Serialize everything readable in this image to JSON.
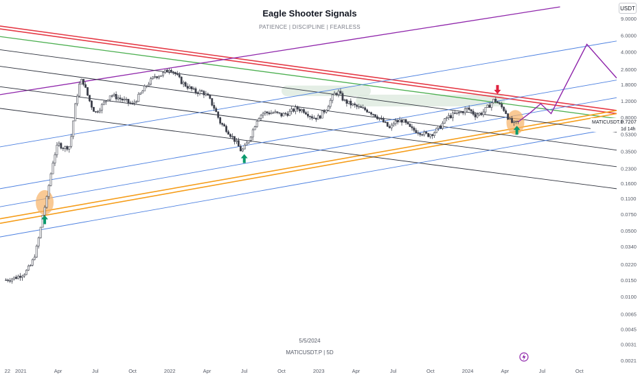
{
  "header": {
    "title": "Eagle Shooter Signals",
    "subtitle": "PATIENCE  |  DISCIPLINE  |  FEARLESS"
  },
  "currency_label": "USDT",
  "footer": {
    "date": "5/5/2024",
    "symbol_interval": "MATICUSDT.P | 5D"
  },
  "price_label": {
    "symbol": "MATICUSDT.P",
    "price": "0.7207",
    "countdown": "1d 14h"
  },
  "colors": {
    "red": "#e53945",
    "green": "#4caf50",
    "orange": "#f59d1a",
    "purple": "#8e24aa",
    "blue": "#4a7fe0",
    "black": "#2a2e39",
    "arrow_up": "#0b9a6d",
    "arrow_down": "#e0223f",
    "highlight": "#f7b267",
    "zone": "#dbe8dc",
    "candle": "#3c3f4a"
  },
  "chart_data": {
    "type": "candlestick",
    "title": "Eagle Shooter Signals",
    "subtitle": "PATIENCE  |  DISCIPLINE  |  FEARLESS",
    "symbol": "MATICUSDT.P",
    "interval": "5D",
    "y_scale": "log",
    "ylim": [
      0.0018,
      12
    ],
    "xlim": [
      2020.86,
      2025.0
    ],
    "y_ticks": [
      "9.0000",
      "6.0000",
      "4.0000",
      "2.6000",
      "1.8000",
      "1.2000",
      "0.8000",
      "0.5300",
      "0.3500",
      "0.2300",
      "0.1600",
      "0.1100",
      "0.0750",
      "0.0500",
      "0.0340",
      "0.0220",
      "0.0150",
      "0.0100",
      "0.0065",
      "0.0045",
      "0.0031",
      "0.0021"
    ],
    "x_ticks": [
      {
        "label": "22",
        "t": 2020.91
      },
      {
        "label": "2021",
        "t": 2021.0
      },
      {
        "label": "Apr",
        "t": 2021.25
      },
      {
        "label": "Jul",
        "t": 2021.5
      },
      {
        "label": "Oct",
        "t": 2021.75
      },
      {
        "label": "2022",
        "t": 2022.0
      },
      {
        "label": "Apr",
        "t": 2022.25
      },
      {
        "label": "Jul",
        "t": 2022.5
      },
      {
        "label": "Oct",
        "t": 2022.75
      },
      {
        "label": "2023",
        "t": 2023.0
      },
      {
        "label": "Apr",
        "t": 2023.25
      },
      {
        "label": "Jul",
        "t": 2023.5
      },
      {
        "label": "Oct",
        "t": 2023.75
      },
      {
        "label": "2024",
        "t": 2024.0
      },
      {
        "label": "Apr",
        "t": 2024.25
      },
      {
        "label": "Jul",
        "t": 2024.5
      },
      {
        "label": "Oct",
        "t": 2024.75
      }
    ],
    "last_price": 0.7207,
    "price_path": [
      [
        2020.9,
        0.015
      ],
      [
        2020.97,
        0.016
      ],
      [
        2021.03,
        0.018
      ],
      [
        2021.07,
        0.022
      ],
      [
        2021.1,
        0.03
      ],
      [
        2021.13,
        0.05
      ],
      [
        2021.15,
        0.08
      ],
      [
        2021.17,
        0.1
      ],
      [
        2021.19,
        0.16
      ],
      [
        2021.22,
        0.3
      ],
      [
        2021.25,
        0.42
      ],
      [
        2021.29,
        0.38
      ],
      [
        2021.33,
        0.4
      ],
      [
        2021.35,
        0.7
      ],
      [
        2021.37,
        1.2
      ],
      [
        2021.4,
        2.0
      ],
      [
        2021.42,
        1.9
      ],
      [
        2021.44,
        1.5
      ],
      [
        2021.47,
        1.1
      ],
      [
        2021.5,
        0.9
      ],
      [
        2021.55,
        1.1
      ],
      [
        2021.6,
        1.4
      ],
      [
        2021.65,
        1.3
      ],
      [
        2021.7,
        1.2
      ],
      [
        2021.75,
        1.1
      ],
      [
        2021.8,
        1.4
      ],
      [
        2021.85,
        1.8
      ],
      [
        2021.9,
        2.2
      ],
      [
        2021.95,
        2.3
      ],
      [
        2022.0,
        2.7
      ],
      [
        2022.04,
        2.3
      ],
      [
        2022.08,
        1.9
      ],
      [
        2022.12,
        1.7
      ],
      [
        2022.17,
        1.5
      ],
      [
        2022.22,
        1.5
      ],
      [
        2022.26,
        1.3
      ],
      [
        2022.3,
        1.0
      ],
      [
        2022.34,
        0.7
      ],
      [
        2022.38,
        0.6
      ],
      [
        2022.44,
        0.45
      ],
      [
        2022.48,
        0.35
      ],
      [
        2022.51,
        0.4
      ],
      [
        2022.55,
        0.55
      ],
      [
        2022.59,
        0.8
      ],
      [
        2022.63,
        0.9
      ],
      [
        2022.7,
        0.9
      ],
      [
        2022.75,
        0.85
      ],
      [
        2022.8,
        0.9
      ],
      [
        2022.85,
        1.0
      ],
      [
        2022.9,
        0.95
      ],
      [
        2022.96,
        0.8
      ],
      [
        2023.0,
        0.8
      ],
      [
        2023.05,
        1.0
      ],
      [
        2023.1,
        1.4
      ],
      [
        2023.13,
        1.5
      ],
      [
        2023.17,
        1.2
      ],
      [
        2023.22,
        1.1
      ],
      [
        2023.28,
        1.0
      ],
      [
        2023.33,
        0.95
      ],
      [
        2023.38,
        0.85
      ],
      [
        2023.44,
        0.7
      ],
      [
        2023.48,
        0.6
      ],
      [
        2023.5,
        0.7
      ],
      [
        2023.56,
        0.75
      ],
      [
        2023.62,
        0.6
      ],
      [
        2023.68,
        0.56
      ],
      [
        2023.73,
        0.52
      ],
      [
        2023.77,
        0.55
      ],
      [
        2023.82,
        0.65
      ],
      [
        2023.86,
        0.8
      ],
      [
        2023.9,
        0.85
      ],
      [
        2023.95,
        0.9
      ],
      [
        2024.0,
        1.0
      ],
      [
        2024.05,
        0.85
      ],
      [
        2024.1,
        0.9
      ],
      [
        2024.15,
        1.1
      ],
      [
        2024.18,
        1.25
      ],
      [
        2024.21,
        1.1
      ],
      [
        2024.25,
        0.95
      ],
      [
        2024.28,
        0.75
      ],
      [
        2024.31,
        0.68
      ],
      [
        2024.34,
        0.7207
      ]
    ],
    "projection_path": [
      [
        2024.34,
        0.7207
      ],
      [
        2024.42,
        0.9
      ],
      [
        2024.49,
        1.12
      ],
      [
        2024.56,
        0.88
      ],
      [
        2024.8,
        4.8
      ],
      [
        2025.0,
        2.1
      ]
    ],
    "signals": [
      {
        "type": "buy",
        "t": 2021.16,
        "price": 0.065
      },
      {
        "type": "buy",
        "t": 2022.5,
        "price": 0.29
      },
      {
        "type": "sell",
        "t": 2024.2,
        "price": 1.6
      },
      {
        "type": "buy",
        "t": 2024.33,
        "price": 0.58
      }
    ],
    "highlight_zones": [
      {
        "t": 2021.16,
        "price": 0.1
      },
      {
        "t": 2024.32,
        "price": 0.71
      }
    ],
    "trendlines": [
      {
        "color": "red",
        "points": [
          [
            2020.86,
            7.5
          ],
          [
            2025.0,
            0.95
          ]
        ]
      },
      {
        "color": "red",
        "points": [
          [
            2020.86,
            7.0
          ],
          [
            2025.0,
            0.88
          ]
        ]
      },
      {
        "color": "green",
        "points": [
          [
            2020.86,
            5.8
          ],
          [
            2025.0,
            0.78
          ]
        ]
      },
      {
        "color": "purple",
        "points": [
          [
            2020.86,
            1.4
          ],
          [
            2024.62,
            12.0
          ]
        ]
      },
      {
        "color": "orange",
        "points": [
          [
            2020.86,
            0.067
          ],
          [
            2025.0,
            0.95
          ]
        ]
      },
      {
        "color": "orange",
        "points": [
          [
            2020.86,
            0.06
          ],
          [
            2025.0,
            0.88
          ]
        ]
      },
      {
        "color": "black",
        "points": [
          [
            2020.86,
            4.2
          ],
          [
            2025.0,
            0.56
          ]
        ]
      },
      {
        "color": "black",
        "points": [
          [
            2020.86,
            2.8
          ],
          [
            2025.0,
            0.36
          ]
        ]
      },
      {
        "color": "black",
        "points": [
          [
            2020.86,
            1.7
          ],
          [
            2025.0,
            0.24
          ]
        ]
      },
      {
        "color": "black",
        "points": [
          [
            2020.86,
            1.0
          ],
          [
            2025.0,
            0.14
          ]
        ]
      },
      {
        "color": "blue",
        "points": [
          [
            2020.86,
            0.39
          ],
          [
            2025.0,
            5.2
          ]
        ]
      },
      {
        "color": "blue",
        "points": [
          [
            2020.86,
            0.14
          ],
          [
            2025.0,
            2.0
          ]
        ]
      },
      {
        "color": "blue",
        "points": [
          [
            2020.86,
            0.09
          ],
          [
            2025.0,
            1.3
          ]
        ]
      },
      {
        "color": "blue",
        "points": [
          [
            2020.86,
            0.043
          ],
          [
            2025.0,
            0.62
          ]
        ]
      }
    ],
    "resistance_zones": [
      {
        "t1": 2022.75,
        "t2": 2023.35,
        "low": 1.35,
        "high": 1.75
      },
      {
        "t1": 2023.25,
        "t2": 2024.25,
        "low": 1.05,
        "high": 1.4
      }
    ]
  }
}
